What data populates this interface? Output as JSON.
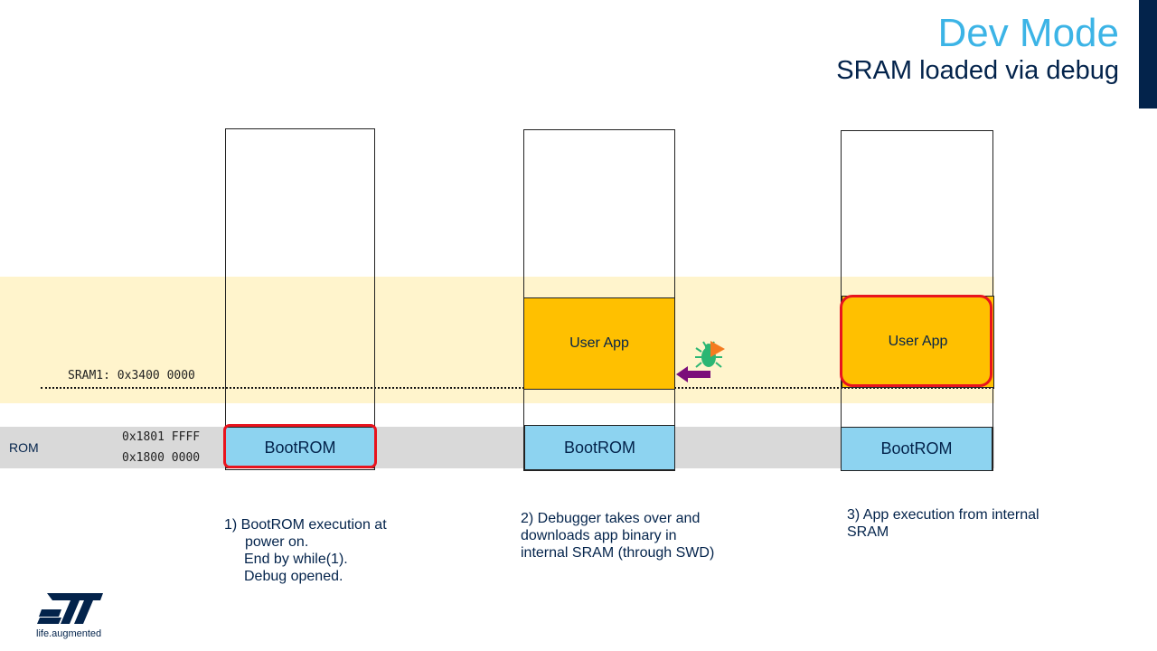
{
  "header": {
    "title": "Dev Mode",
    "subtitle": "SRAM loaded via debug"
  },
  "memory_map": {
    "rom_label": "ROM",
    "sram_address_label": "SRAM1: 0x3400 0000",
    "rom_end_address": "0x1801 FFFF",
    "rom_start_address": "0x1800 0000"
  },
  "columns": [
    {
      "bootrom_label": "BootROM",
      "highlighted_block": "BootROM"
    },
    {
      "bootrom_label": "BootROM",
      "userapp_label": "User App"
    },
    {
      "bootrom_label": "BootROM",
      "userapp_label": "User App",
      "highlighted_block": "User App"
    }
  ],
  "captions": {
    "step1": {
      "line1": "1)  BootROM execution at",
      "line2": "power on.",
      "line3": "End by while(1).",
      "line4": "Debug opened."
    },
    "step2": {
      "line1": "2) Debugger takes over and",
      "line2": "downloads app binary in",
      "line3": "internal SRAM (through  SWD)"
    },
    "step3": {
      "line1": "3) App execution from internal",
      "line2": "SRAM"
    }
  },
  "icons": {
    "debugger": "bug-icon",
    "play": "play-icon",
    "arrow": "left-arrow-icon"
  },
  "colors": {
    "title": "#3CB4E6",
    "navy": "#03234B",
    "sram_band": "#FFF4CC",
    "rom_band": "#D9D9D9",
    "bootrom": "#8DD3F0",
    "userapp": "#FFC000",
    "highlight": "#E8141E",
    "arrow": "#7B0E7A",
    "bug": "#2BB673",
    "play": "#F47B20"
  },
  "logo": {
    "tagline": "life.augmented"
  }
}
